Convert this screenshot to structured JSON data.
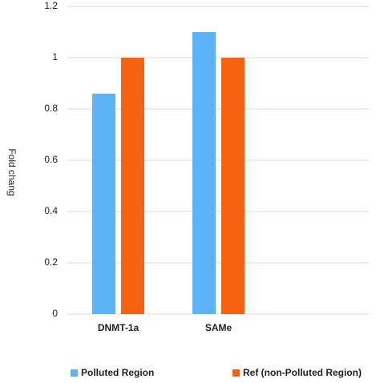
{
  "chart_data": {
    "type": "bar",
    "y_label": "Fold chang",
    "categories": [
      "DNMT-1a",
      "SAMe",
      null
    ],
    "series": [
      {
        "name": "Polluted Region",
        "color": "#5cb3f5",
        "values": [
          0.86,
          1.1,
          null
        ]
      },
      {
        "name": "Ref (non-Polluted Region)",
        "color": "#f6620f",
        "values": [
          1,
          1,
          null
        ]
      }
    ],
    "ylim": [
      0,
      1.2
    ],
    "yticks": [
      0,
      0.2,
      0.4,
      0.6,
      0.8,
      1,
      1.2
    ],
    "grid": true,
    "legend": "bottom"
  }
}
